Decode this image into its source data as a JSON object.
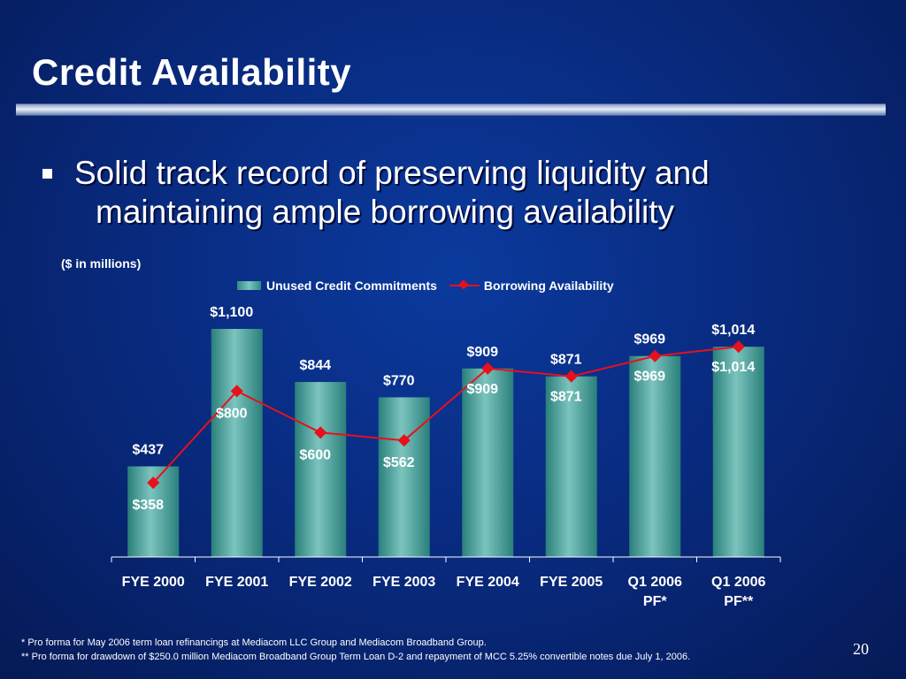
{
  "title": "Credit Availability",
  "bullet": {
    "line1": "Solid track record of preserving liquidity and",
    "line2": "maintaining ample borrowing availability"
  },
  "units_note": "($ in millions)",
  "chart_data": {
    "type": "bar",
    "categories": [
      "FYE 2000",
      "FYE 2001",
      "FYE 2002",
      "FYE 2003",
      "FYE 2004",
      "FYE 2005",
      "Q1 2006 PF*",
      "Q1 2006 PF**"
    ],
    "category_lines": [
      [
        "FYE 2000"
      ],
      [
        "FYE 2001"
      ],
      [
        "FYE 2002"
      ],
      [
        "FYE 2003"
      ],
      [
        "FYE 2004"
      ],
      [
        "FYE 2005"
      ],
      [
        "Q1 2006",
        "PF*"
      ],
      [
        "Q1 2006",
        "PF**"
      ]
    ],
    "series": [
      {
        "name": "Unused Credit Commitments",
        "type": "bar",
        "color": "#2f8b86",
        "values": [
          437,
          1100,
          844,
          770,
          909,
          871,
          969,
          1014
        ],
        "labels": [
          "$437",
          "$1,100",
          "$844",
          "$770",
          "$909",
          "$871",
          "$969",
          "$1,014"
        ]
      },
      {
        "name": "Borrowing Availability",
        "type": "line",
        "color": "#e8101c",
        "values": [
          358,
          800,
          600,
          562,
          909,
          871,
          969,
          1014
        ],
        "labels": [
          "$358",
          "$800",
          "$600",
          "$562",
          "$909",
          "$871",
          "$969",
          "$1,014"
        ]
      }
    ],
    "ylim": [
      0,
      1100
    ],
    "legend_position": "top",
    "grid": false
  },
  "footnotes": [
    "*  Pro forma for May 2006 term loan refinancings at Mediacom LLC Group and Mediacom Broadband Group.",
    "** Pro forma for drawdown of $250.0 million Mediacom Broadband Group Term Loan D-2 and repayment of MCC 5.25% convertible notes due July 1, 2006."
  ],
  "page_number": "20"
}
